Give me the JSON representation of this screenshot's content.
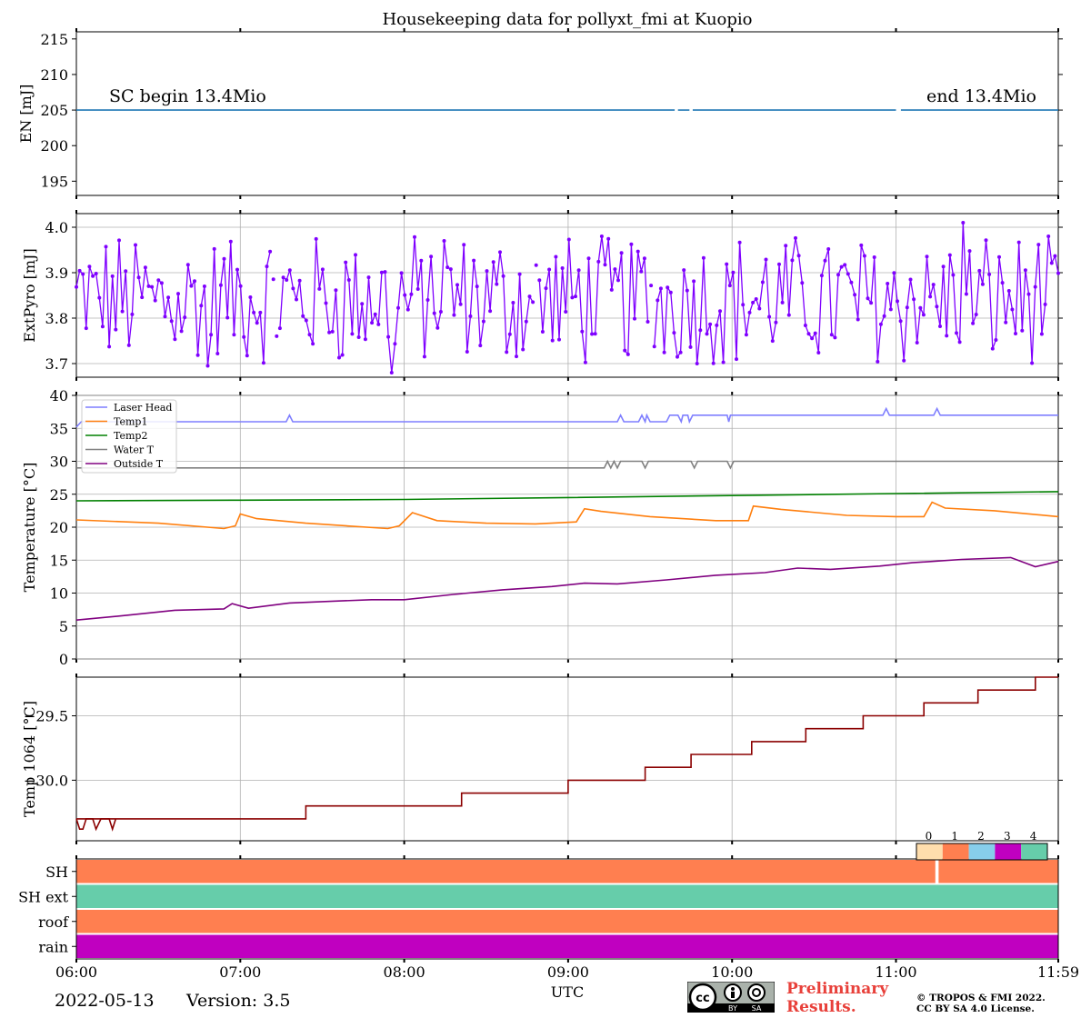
{
  "chart_data": [
    {
      "type": "line",
      "title": "Housekeeping data for pollyxt_fmi at Kuopio",
      "ylabel": "EN [mJ]",
      "ylim": [
        193,
        216
      ],
      "yticks": [
        "195",
        "200",
        "205",
        "210",
        "215"
      ],
      "series": [
        {
          "name": "EN",
          "color": "#1f77b4",
          "x_range_hours": [
            6.0,
            11.99
          ],
          "value": 205,
          "gaps_hours": [
            [
              9.65,
              9.67
            ],
            [
              9.74,
              9.76
            ],
            [
              11.0,
              11.03
            ]
          ]
        }
      ],
      "annotations": {
        "begin": "SC begin 13.4Mio",
        "end": "end 13.4Mio"
      }
    },
    {
      "type": "line",
      "ylabel": "ExtPyro [mJ]",
      "ylim": [
        3.67,
        4.03
      ],
      "yticks": [
        "3.7",
        "3.8",
        "3.9",
        "4.0"
      ],
      "series": [
        {
          "name": "ExtPyro",
          "color": "#7f00ff",
          "marker": "dot",
          "mean": 3.84,
          "min": 3.68,
          "max": 4.01
        }
      ]
    },
    {
      "type": "line",
      "ylabel": "Temperature [$^\\circ C$]",
      "ylim": [
        0,
        40
      ],
      "yticks": [
        "0",
        "5",
        "10",
        "15",
        "20",
        "25",
        "30",
        "35",
        "40"
      ],
      "series": [
        {
          "name": "Laser Head",
          "color": "#7f7fff",
          "points": [
            [
              6.0,
              35.2
            ],
            [
              6.03,
              36
            ],
            [
              7.28,
              36
            ],
            [
              7.3,
              37
            ],
            [
              7.32,
              36
            ],
            [
              9.3,
              36
            ],
            [
              9.32,
              37
            ],
            [
              9.34,
              36
            ],
            [
              9.43,
              36
            ],
            [
              9.45,
              37
            ],
            [
              9.47,
              36
            ],
            [
              9.48,
              37
            ],
            [
              9.5,
              36
            ],
            [
              9.6,
              36
            ],
            [
              9.62,
              37
            ],
            [
              9.67,
              37
            ],
            [
              9.69,
              36
            ],
            [
              9.7,
              37
            ],
            [
              9.73,
              37
            ],
            [
              9.74,
              36
            ],
            [
              9.76,
              37
            ],
            [
              9.97,
              37
            ],
            [
              9.98,
              36
            ],
            [
              9.99,
              37
            ],
            [
              10.92,
              37
            ],
            [
              10.94,
              38
            ],
            [
              10.96,
              37
            ],
            [
              11.23,
              37
            ],
            [
              11.25,
              38
            ],
            [
              11.27,
              37
            ],
            [
              11.99,
              37
            ]
          ]
        },
        {
          "name": "Temp1",
          "color": "#ff7f0e",
          "points": [
            [
              6.0,
              21.1
            ],
            [
              6.5,
              20.6
            ],
            [
              6.9,
              19.8
            ],
            [
              6.97,
              20.2
            ],
            [
              7.0,
              22
            ],
            [
              7.1,
              21.3
            ],
            [
              7.4,
              20.6
            ],
            [
              7.9,
              19.8
            ],
            [
              7.97,
              20.2
            ],
            [
              8.05,
              22.2
            ],
            [
              8.2,
              21
            ],
            [
              8.5,
              20.6
            ],
            [
              8.8,
              20.5
            ],
            [
              9.05,
              20.8
            ],
            [
              9.1,
              22.8
            ],
            [
              9.2,
              22.4
            ],
            [
              9.5,
              21.6
            ],
            [
              9.9,
              21
            ],
            [
              10.1,
              21
            ],
            [
              10.13,
              23.2
            ],
            [
              10.3,
              22.7
            ],
            [
              10.7,
              21.8
            ],
            [
              11.0,
              21.6
            ],
            [
              11.17,
              21.6
            ],
            [
              11.22,
              23.8
            ],
            [
              11.3,
              22.9
            ],
            [
              11.6,
              22.5
            ],
            [
              11.99,
              21.6
            ]
          ]
        },
        {
          "name": "Temp2",
          "color": "#008000",
          "points": [
            [
              6.0,
              24
            ],
            [
              7.0,
              24.1
            ],
            [
              8.0,
              24.2
            ],
            [
              9.0,
              24.5
            ],
            [
              10.0,
              24.8
            ],
            [
              11.0,
              25.1
            ],
            [
              11.99,
              25.4
            ]
          ]
        },
        {
          "name": "Water T",
          "color": "#808080",
          "points": [
            [
              6.0,
              29
            ],
            [
              9.22,
              29
            ],
            [
              9.24,
              30
            ],
            [
              9.26,
              29
            ],
            [
              9.28,
              30
            ],
            [
              9.3,
              29
            ],
            [
              9.32,
              30
            ],
            [
              9.45,
              30
            ],
            [
              9.47,
              29
            ],
            [
              9.49,
              30
            ],
            [
              9.75,
              30
            ],
            [
              9.77,
              29
            ],
            [
              9.79,
              30
            ],
            [
              9.97,
              30
            ],
            [
              9.99,
              29
            ],
            [
              10.01,
              30
            ],
            [
              11.99,
              30
            ]
          ]
        },
        {
          "name": "Outside T",
          "color": "#800080",
          "points": [
            [
              6.0,
              5.9
            ],
            [
              6.3,
              6.6
            ],
            [
              6.6,
              7.4
            ],
            [
              6.9,
              7.6
            ],
            [
              6.95,
              8.4
            ],
            [
              7.05,
              7.7
            ],
            [
              7.3,
              8.5
            ],
            [
              7.6,
              8.8
            ],
            [
              7.8,
              9
            ],
            [
              8.0,
              9
            ],
            [
              8.3,
              9.8
            ],
            [
              8.6,
              10.5
            ],
            [
              8.9,
              11
            ],
            [
              9.1,
              11.5
            ],
            [
              9.3,
              11.4
            ],
            [
              9.6,
              12
            ],
            [
              9.9,
              12.7
            ],
            [
              10.2,
              13.1
            ],
            [
              10.4,
              13.8
            ],
            [
              10.6,
              13.6
            ],
            [
              10.9,
              14.1
            ],
            [
              11.1,
              14.6
            ],
            [
              11.4,
              15.1
            ],
            [
              11.7,
              15.4
            ],
            [
              11.85,
              14
            ],
            [
              11.99,
              14.8
            ]
          ]
        }
      ],
      "legend": {
        "position": "top-left",
        "entries": [
          "Laser Head",
          "Temp1",
          "Temp2",
          "Water T",
          "Outside T"
        ]
      }
    },
    {
      "type": "line",
      "ylabel": "Temp 1064 [$^\\circ C$]",
      "ylim": [
        -30.47,
        -29.2
      ],
      "yticks": [
        "−29.5",
        "−30.0"
      ],
      "series": [
        {
          "name": "Temp 1064",
          "color": "#8b0000",
          "step_points": [
            [
              6.0,
              -30.3
            ],
            [
              6.35,
              -30.3
            ],
            [
              7.4,
              -30.2
            ],
            [
              8.3,
              -30.2
            ],
            [
              8.35,
              -30.1
            ],
            [
              8.9,
              -30.1
            ],
            [
              9.0,
              -30.0
            ],
            [
              9.45,
              -30.0
            ],
            [
              9.47,
              -29.9
            ],
            [
              9.7,
              -29.9
            ],
            [
              9.75,
              -29.8
            ],
            [
              10.1,
              -29.8
            ],
            [
              10.12,
              -29.7
            ],
            [
              10.42,
              -29.7
            ],
            [
              10.45,
              -29.6
            ],
            [
              10.75,
              -29.6
            ],
            [
              10.8,
              -29.5
            ],
            [
              11.15,
              -29.5
            ],
            [
              11.17,
              -29.4
            ],
            [
              11.45,
              -29.4
            ],
            [
              11.5,
              -29.3
            ],
            [
              11.8,
              -29.3
            ],
            [
              11.85,
              -29.2
            ],
            [
              11.99,
              -29.2
            ]
          ]
        }
      ]
    },
    {
      "type": "heatmap",
      "rows": [
        "SH",
        "SH ext",
        "roof",
        "rain"
      ],
      "row_values": [
        1,
        4,
        1,
        3
      ],
      "colorbar": {
        "labels": [
          "0",
          "1",
          "2",
          "3",
          "4"
        ],
        "colors": [
          "#ffdead",
          "#ff7f50",
          "#87ceeb",
          "#c000c0",
          "#66cdaa"
        ]
      },
      "gap_hours": [
        [
          11.24,
          11.26
        ]
      ]
    }
  ],
  "xaxis": {
    "label": "UTC",
    "ticks": [
      "06:00",
      "07:00",
      "08:00",
      "09:00",
      "10:00",
      "11:00",
      "11:59"
    ],
    "range_hours": [
      6.0,
      11.99
    ]
  },
  "footer": {
    "date": "2022-05-13",
    "version": "Version: 3.5",
    "preliminary": [
      "Preliminary",
      "Results."
    ],
    "copyright": [
      "© TROPOS & FMI 2022.",
      "CC BY SA 4.0 License."
    ],
    "badge": {
      "by": "BY",
      "sa": "SA"
    }
  }
}
